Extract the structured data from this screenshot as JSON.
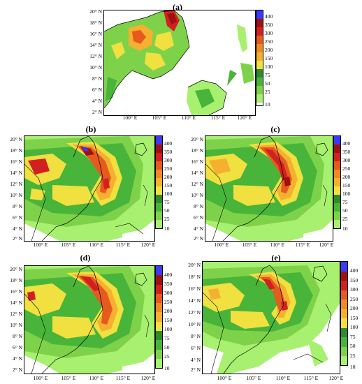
{
  "panels": [
    {
      "id": "a",
      "label": "(a)",
      "lat_ticks": [
        "20° N",
        "18° N",
        "16° N",
        "14° N",
        "12° N",
        "10° N",
        "8° N",
        "6° N",
        "4° N",
        "2° N"
      ],
      "lon_ticks": [
        "100° E",
        "105° E",
        "110° E",
        "115° E",
        "120° E"
      ]
    },
    {
      "id": "b",
      "label": "(b)",
      "lat_ticks": [
        "20° N",
        "18° N",
        "16° N",
        "14° N",
        "12° N",
        "10° N",
        "8° N",
        "6° N",
        "4° N",
        "2° N"
      ],
      "lon_ticks": [
        "100° E",
        "105° E",
        "110° E",
        "115° E",
        "120° E"
      ]
    },
    {
      "id": "c",
      "label": "(c)",
      "lat_ticks": [
        "20° N",
        "18° N",
        "16° N",
        "14° N",
        "12° N",
        "10° N",
        "8° N",
        "6° N",
        "4° N",
        "2° N"
      ],
      "lon_ticks": [
        "100° E",
        "105° E",
        "110° E",
        "115° E",
        "120° E"
      ]
    },
    {
      "id": "d",
      "label": "(d)",
      "lat_ticks": [
        "20° N",
        "18° N",
        "16° N",
        "14° N",
        "12° N",
        "10° N",
        "8° N",
        "6° N",
        "4° N",
        "2° N"
      ],
      "lon_ticks": [
        "100° E",
        "105° E",
        "110° E",
        "115° E",
        "120° E"
      ]
    },
    {
      "id": "e",
      "label": "(e)",
      "lat_ticks": [
        "20° N",
        "18° N",
        "16° N",
        "14° N",
        "12° N",
        "10° N",
        "8° N",
        "6° N",
        "4° N",
        "2° N"
      ],
      "lon_ticks": [
        "100° E",
        "105° E",
        "110° E",
        "115° E",
        "120° E"
      ]
    }
  ],
  "colorbar": {
    "labels": [
      "400",
      "350",
      "300",
      "250",
      "200",
      "150",
      "100",
      "75",
      "50",
      "25",
      "10"
    ],
    "colors": [
      "#ffffff",
      "#a8f070",
      "#7ed24a",
      "#49b43a",
      "#2e8b2e",
      "#f0e040",
      "#f5b030",
      "#f08a24",
      "#e65a1e",
      "#d22020",
      "#a01010",
      "#3a3aff"
    ]
  }
}
